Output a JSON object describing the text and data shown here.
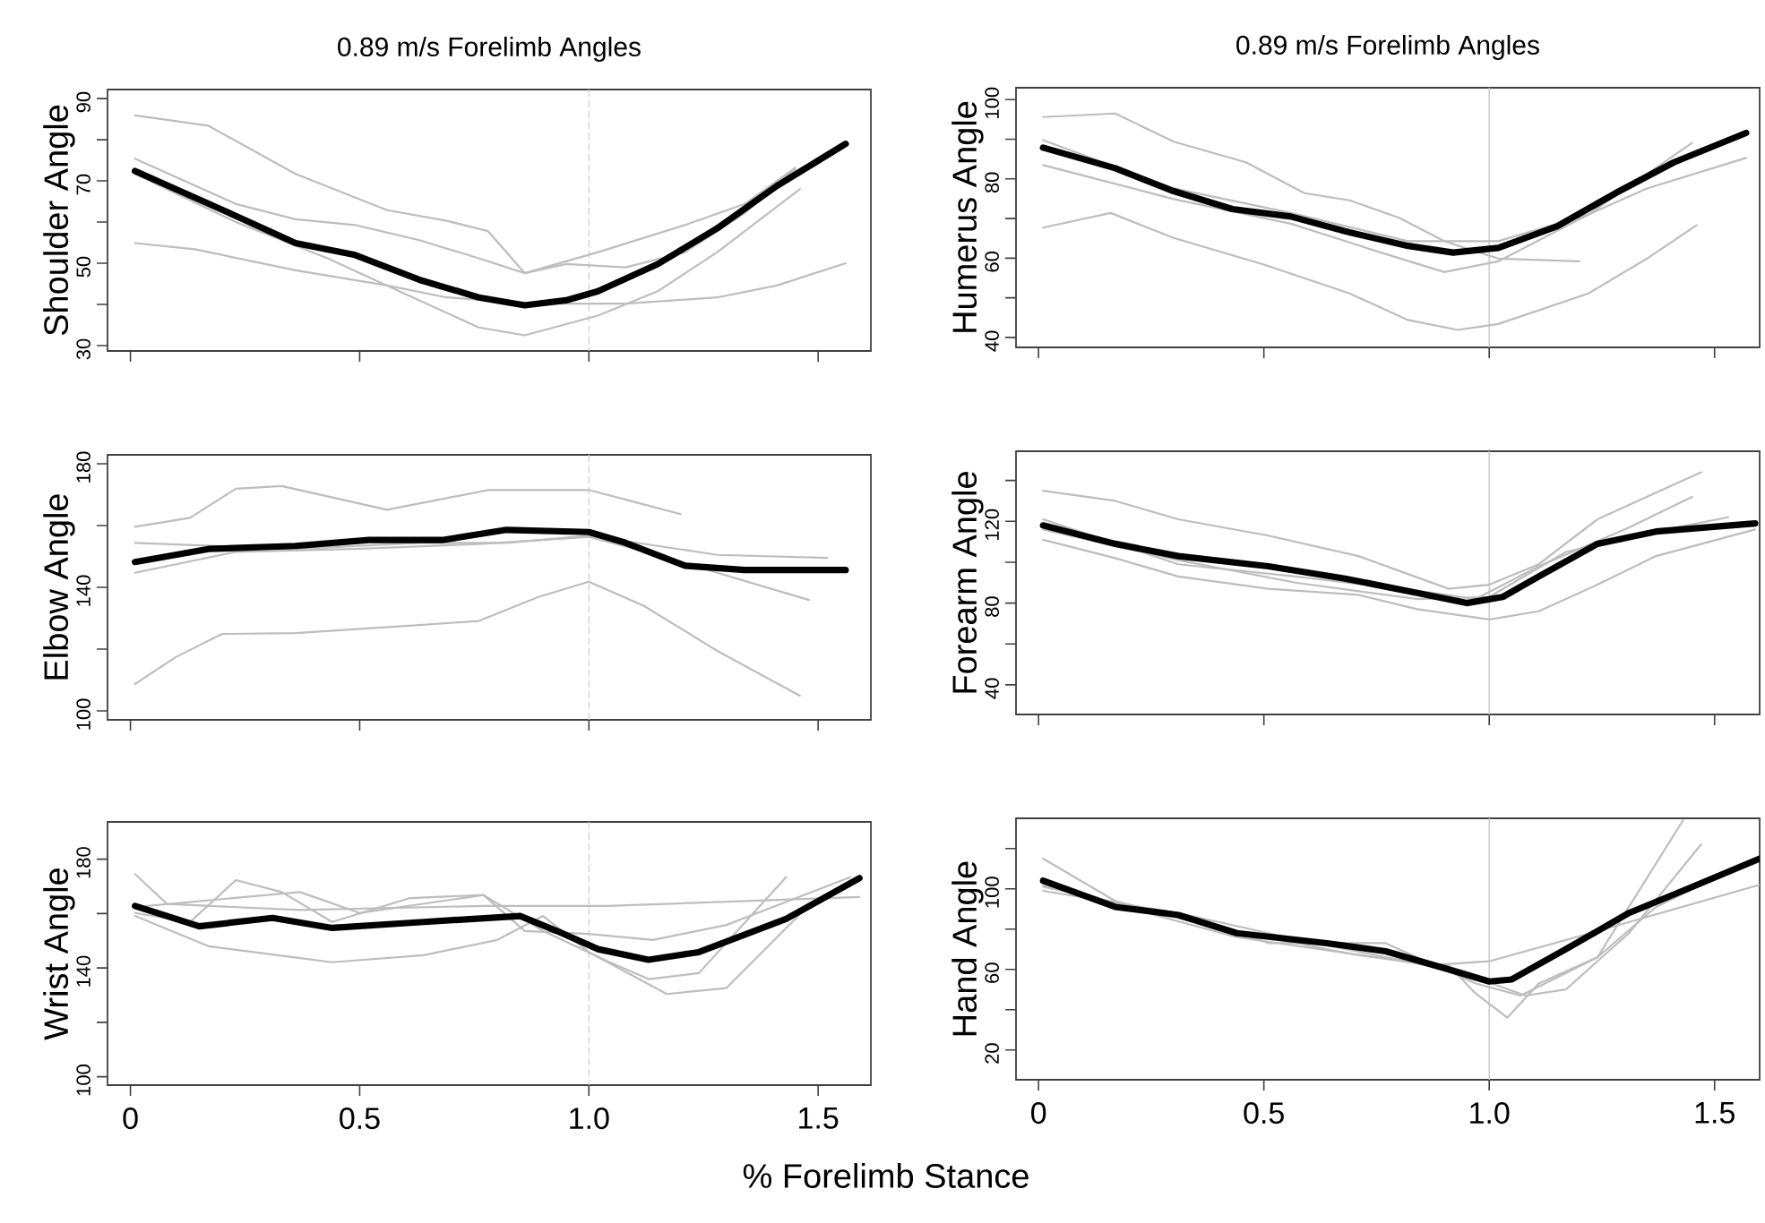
{
  "chart_data": [
    {
      "type": "line",
      "title": "0.89 m/s Forelimb Angles",
      "ylabel": "Shoulder Angle",
      "xlim": [
        -0.05,
        1.615
      ],
      "ylim": [
        28.7,
        92.2
      ],
      "tick_labels": "y",
      "xticks": [
        0,
        0.5,
        1,
        1.5
      ],
      "yticks": [
        30,
        {
          "value": 40,
          "label": null
        },
        50,
        {
          "value": 60,
          "label": null
        },
        70,
        {
          "value": 80,
          "label": null
        },
        90
      ],
      "ref_lines": [
        {
          "axis": "x",
          "value": 1,
          "color": "#cccccc",
          "line_style": "dashed"
        }
      ],
      "series": [
        {
          "color": "#bdbdbd",
          "x": [
            0.01,
            0.17,
            0.36,
            0.56,
            0.69,
            0.78,
            0.86,
            0.95,
            1.08,
            1.21,
            1.34,
            1.45
          ],
          "values": [
            85.9,
            83.4,
            71.7,
            62.9,
            60.3,
            57.8,
            47.6,
            49.8,
            49,
            52.7,
            62.2,
            72.9
          ]
        },
        {
          "color": "#bdbdbd",
          "x": [
            0.01,
            0.23,
            0.36,
            0.49,
            0.63,
            0.76,
            0.86,
            1.02,
            1.21,
            1.34,
            1.45
          ],
          "values": [
            75.4,
            64.4,
            60.7,
            59.3,
            55.6,
            51.2,
            47.6,
            52.7,
            59.3,
            64.4,
            73.2
          ]
        },
        {
          "color": "#bdbdbd",
          "x": [
            0.01,
            0.14,
            0.36,
            0.56,
            0.69,
            0.89,
            1.08,
            1.28,
            1.41,
            1.56
          ],
          "values": [
            54.9,
            53.4,
            48.3,
            44.6,
            41.7,
            40.2,
            40.2,
            41.7,
            44.6,
            50
          ]
        },
        {
          "color": "#bdbdbd",
          "x": [
            0.01,
            0.23,
            0.43,
            0.63,
            0.76,
            0.86,
            1.02,
            1.15,
            1.28,
            1.46
          ],
          "values": [
            71.7,
            60,
            51.2,
            41,
            34.4,
            32.5,
            37.3,
            43.2,
            52.7,
            68
          ]
        },
        {
          "color": "#000000",
          "x": [
            0.01,
            0.23,
            0.36,
            0.49,
            0.63,
            0.76,
            0.86,
            0.95,
            1.02,
            1.15,
            1.28,
            1.41,
            1.56
          ],
          "values": [
            72.4,
            61.5,
            54.9,
            52,
            46,
            41.7,
            39.8,
            41,
            43.2,
            49.8,
            58.5,
            68.8,
            79
          ]
        }
      ]
    },
    {
      "type": "line",
      "title": "0.89 m/s Forelimb Angles",
      "ylabel": "Humerus Angle",
      "xlim": [
        -0.05,
        1.6
      ],
      "ylim": [
        37.5,
        103
      ],
      "tick_labels": "y",
      "xticks": [
        0,
        0.5,
        1,
        1.5
      ],
      "yticks": [
        40,
        {
          "value": 50,
          "label": null
        },
        60,
        {
          "value": 70,
          "label": null
        },
        80,
        {
          "value": 90,
          "label": null
        },
        100
      ],
      "ref_lines": [
        {
          "axis": "x",
          "value": 1,
          "color": "#c8c8c8",
          "line_style": "solid"
        }
      ],
      "series": [
        {
          "color": "#bdbdbd",
          "x": [
            0.01,
            0.17,
            0.3,
            0.46,
            0.59,
            0.69,
            0.8,
            0.9,
            1.02,
            1.2
          ],
          "values": [
            95.6,
            96.5,
            89.4,
            84.2,
            76.4,
            74.6,
            70.2,
            64.3,
            59.9,
            59.2
          ]
        },
        {
          "color": "#bdbdbd",
          "x": [
            0.01,
            0.16,
            0.3,
            0.5,
            0.69,
            0.82,
            0.93,
            1.02,
            1.22,
            1.35,
            1.46
          ],
          "values": [
            67.7,
            71.4,
            65.1,
            58.4,
            51.1,
            44.4,
            41.9,
            43.4,
            51.1,
            59.9,
            68.3
          ]
        },
        {
          "color": "#bdbdbd",
          "x": [
            0.01,
            0.3,
            0.56,
            0.76,
            0.9,
            1.02,
            1.22,
            1.45
          ],
          "values": [
            83.5,
            74.9,
            68.7,
            61.4,
            56.5,
            59.2,
            71,
            89.1
          ]
        },
        {
          "color": "#bdbdbd",
          "x": [
            0.01,
            0.3,
            0.56,
            0.82,
            1.02,
            1.22,
            1.35,
            1.57
          ],
          "values": [
            89.8,
            77.6,
            71.4,
            64.3,
            64.3,
            71,
            77.6,
            85.3
          ]
        },
        {
          "color": "#000000",
          "x": [
            0.01,
            0.17,
            0.3,
            0.43,
            0.56,
            0.69,
            0.82,
            0.92,
            1.02,
            1.15,
            1.28,
            1.41,
            1.57
          ],
          "values": [
            87.9,
            82.7,
            76.9,
            72.4,
            70.5,
            66.5,
            63.1,
            61.4,
            62.6,
            68,
            76.4,
            84.2,
            91.6
          ]
        }
      ]
    },
    {
      "type": "line",
      "ylabel": "Elbow Angle",
      "xlim": [
        -0.05,
        1.615
      ],
      "ylim": [
        97.1,
        182.9
      ],
      "tick_labels": "y",
      "xticks": [
        0,
        0.5,
        1,
        1.5
      ],
      "yticks": [
        100,
        {
          "value": 120,
          "label": null
        },
        140,
        {
          "value": 160,
          "label": null
        },
        180
      ],
      "ref_lines": [
        {
          "axis": "x",
          "value": 1,
          "color": "#cccccc",
          "line_style": "dashed"
        }
      ],
      "series": [
        {
          "color": "#bdbdbd",
          "x": [
            0.01,
            0.13,
            0.23,
            0.33,
            0.56,
            0.78,
            1.0,
            1.09,
            1.2
          ],
          "values": [
            159.6,
            162.5,
            171.9,
            172.8,
            165.1,
            171.5,
            171.5,
            168,
            163.7
          ]
        },
        {
          "color": "#bdbdbd",
          "x": [
            0.01,
            0.1,
            0.2,
            0.36,
            0.63,
            0.76,
            0.89,
            1.0,
            1.12,
            1.28,
            1.46
          ],
          "values": [
            108.7,
            117.5,
            124.9,
            125.2,
            127.8,
            129.1,
            136.9,
            141.8,
            134,
            119.4,
            104.9
          ]
        },
        {
          "color": "#bdbdbd",
          "x": [
            0.01,
            0.36,
            0.63,
            0.82,
            1.0,
            1.15,
            1.28,
            1.52
          ],
          "values": [
            154.4,
            152.4,
            154.4,
            154.4,
            156.7,
            153.4,
            150.5,
            149.5
          ]
        },
        {
          "color": "#bdbdbd",
          "x": [
            0.01,
            0.23,
            0.49,
            0.76,
            1.0,
            1.15,
            1.28,
            1.48
          ],
          "values": [
            144.7,
            151.5,
            152.4,
            154,
            156.3,
            150.5,
            144.7,
            135.9
          ]
        },
        {
          "color": "#000000",
          "x": [
            0.01,
            0.17,
            0.36,
            0.52,
            0.68,
            0.82,
            1.0,
            1.08,
            1.21,
            1.34,
            1.56
          ],
          "values": [
            148.2,
            152.4,
            153.4,
            155.3,
            155.3,
            158.6,
            157.9,
            154.4,
            147,
            145.6,
            145.6
          ]
        }
      ]
    },
    {
      "type": "line",
      "ylabel": "Forearm Angle",
      "xlim": [
        -0.05,
        1.6
      ],
      "ylim": [
        25.5,
        154.3
      ],
      "tick_labels": "y",
      "xticks": [
        0,
        0.5,
        1,
        1.5
      ],
      "yticks": [
        40,
        {
          "value": 60,
          "label": null
        },
        80,
        {
          "value": 100,
          "label": null
        },
        120,
        {
          "value": 140,
          "label": null
        }
      ],
      "ref_lines": [
        {
          "axis": "x",
          "value": 1,
          "color": "#c8c8c8",
          "line_style": "solid"
        }
      ],
      "series": [
        {
          "color": "#bdbdbd",
          "x": [
            0.01,
            0.17,
            0.31,
            0.51,
            0.71,
            0.81,
            0.91,
            1.0,
            1.11,
            1.24,
            1.37,
            1.47
          ],
          "values": [
            135,
            130,
            121,
            113,
            103,
            95,
            87,
            89,
            99,
            121,
            134,
            144
          ]
        },
        {
          "color": "#bdbdbd",
          "x": [
            0.01,
            0.17,
            0.31,
            0.51,
            0.71,
            0.84,
            1.0,
            1.11,
            1.24,
            1.37,
            1.59
          ],
          "values": [
            111,
            102,
            93,
            87,
            84,
            77,
            72,
            76,
            89,
            103,
            116
          ]
        },
        {
          "color": "#bdbdbd",
          "x": [
            0.01,
            0.31,
            0.57,
            0.84,
            0.97,
            1.11,
            1.31,
            1.45
          ],
          "values": [
            121,
            99,
            93,
            86,
            82,
            98,
            117,
            132
          ]
        },
        {
          "color": "#bdbdbd",
          "x": [
            0.01,
            0.31,
            0.57,
            0.84,
            1.0,
            1.17,
            1.37,
            1.53
          ],
          "values": [
            116,
            101,
            90,
            82,
            83,
            105,
            115,
            122
          ]
        },
        {
          "color": "#000000",
          "x": [
            0.01,
            0.17,
            0.31,
            0.51,
            0.68,
            0.84,
            0.95,
            1.03,
            1.11,
            1.24,
            1.37,
            1.59
          ],
          "values": [
            118,
            109,
            103,
            98,
            92,
            85,
            80,
            83,
            93,
            109,
            115,
            119
          ]
        }
      ]
    },
    {
      "type": "line",
      "ylabel": "Wrist Angle",
      "xlabel": "% Forelimb Stance",
      "xlim": [
        -0.05,
        1.615
      ],
      "ylim": [
        96.9,
        193.7
      ],
      "xticks": [
        0,
        0.5,
        {
          "value": 1,
          "label": "1.0"
        },
        1.5
      ],
      "yticks": [
        100,
        {
          "value": 120,
          "label": null
        },
        140,
        {
          "value": 160,
          "label": null
        },
        180
      ],
      "ref_lines": [
        {
          "axis": "x",
          "value": 1,
          "color": "#cccccc",
          "line_style": "dashed"
        }
      ],
      "series": [
        {
          "color": "#bdbdbd",
          "x": [
            0.01,
            0.08,
            0.37,
            0.77,
            1.04,
            1.59
          ],
          "values": [
            174.5,
            163.5,
            161.3,
            162.8,
            162.8,
            166.1
          ]
        },
        {
          "color": "#bdbdbd",
          "x": [
            0.01,
            0.17,
            0.37,
            0.44,
            0.64,
            0.8,
            0.9,
            1.0,
            1.17,
            1.3,
            1.46
          ],
          "values": [
            159.1,
            148,
            143.6,
            142.1,
            144.7,
            150.3,
            159.1,
            145.8,
            130.4,
            132.6,
            159.7
          ]
        },
        {
          "color": "#bdbdbd",
          "x": [
            0.01,
            0.13,
            0.23,
            0.33,
            0.44,
            0.61,
            0.77,
            0.9,
            1.04,
            1.13,
            1.24,
            1.43
          ],
          "values": [
            160.2,
            156.9,
            172.3,
            167.9,
            156.9,
            165.7,
            166.8,
            153.6,
            142.5,
            135.9,
            138.1,
            173.4
          ]
        },
        {
          "color": "#bdbdbd",
          "x": [
            0.01,
            0.37,
            0.5,
            0.77,
            0.86,
            1.0,
            1.14,
            1.3,
            1.57
          ],
          "values": [
            162.4,
            167.9,
            160.2,
            166.8,
            153.6,
            152.5,
            150.3,
            155.8,
            173.4
          ]
        },
        {
          "color": "#000000",
          "x": [
            0.01,
            0.15,
            0.31,
            0.44,
            0.64,
            0.85,
            0.93,
            1.02,
            1.13,
            1.24,
            1.43,
            1.59
          ],
          "values": [
            162.8,
            155.3,
            158.4,
            154.7,
            156.9,
            159.1,
            153.6,
            146.9,
            143,
            145.8,
            158,
            173
          ]
        }
      ]
    },
    {
      "type": "line",
      "ylabel": "Hand Angle",
      "xlim": [
        -0.05,
        1.6
      ],
      "ylim": [
        5.2,
        135
      ],
      "xticks": [
        0,
        0.5,
        {
          "value": 1,
          "label": "1.0"
        },
        1.5
      ],
      "yticks": [
        20,
        {
          "value": 40,
          "label": null
        },
        60,
        {
          "value": 80,
          "label": null
        },
        100,
        {
          "value": 120,
          "label": null
        }
      ],
      "ref_lines": [
        {
          "axis": "x",
          "value": 1,
          "color": "#c8c8c8",
          "line_style": "solid"
        }
      ],
      "series": [
        {
          "color": "#bdbdbd",
          "x": [
            0.01,
            0.17,
            0.37,
            0.71,
            0.91,
            0.97,
            1.04,
            1.11,
            1.24,
            1.43
          ],
          "values": [
            115,
            94,
            82,
            67,
            62,
            48,
            36,
            53,
            66,
            134
          ]
        },
        {
          "color": "#bdbdbd",
          "x": [
            0.01,
            0.31,
            0.57,
            0.84,
            0.97,
            1.08,
            1.17,
            1.31,
            1.47
          ],
          "values": [
            99,
            88,
            75,
            63,
            56,
            47,
            50,
            78,
            122
          ]
        },
        {
          "color": "#bdbdbd",
          "x": [
            0.01,
            0.44,
            0.87,
            1.0,
            1.24,
            1.6
          ],
          "values": [
            102,
            76,
            62,
            64,
            79,
            102
          ]
        },
        {
          "color": "#bdbdbd",
          "x": [
            0.01,
            0.37,
            0.51,
            0.77,
            0.97,
            1.07,
            1.24,
            1.37,
            1.59
          ],
          "values": [
            101,
            84,
            73,
            73,
            53,
            47,
            66,
            91,
            115
          ]
        },
        {
          "color": "#000000",
          "x": [
            0.01,
            0.17,
            0.31,
            0.44,
            0.64,
            0.77,
            0.91,
            1.0,
            1.05,
            1.17,
            1.31,
            1.44,
            1.6
          ],
          "values": [
            104,
            91,
            87,
            78,
            73,
            69,
            60,
            54,
            55,
            70,
            88,
            100,
            115
          ]
        }
      ]
    }
  ]
}
